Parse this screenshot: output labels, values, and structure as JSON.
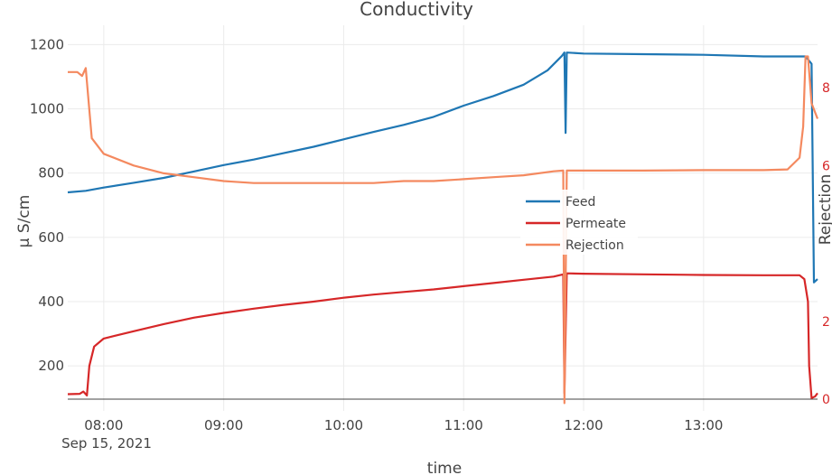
{
  "chart_data": {
    "type": "line",
    "title": "Conductivity",
    "xlabel": "time",
    "ylabel": "μ S/cm",
    "y2label": "Rejection",
    "xlim": [
      7.7,
      13.95
    ],
    "ylim": [
      60,
      1260
    ],
    "y2lim": [
      -0.3,
      9.6
    ],
    "x_ticks": [
      8,
      9,
      10,
      11,
      12,
      13
    ],
    "x_tick_labels": [
      "08:00",
      "09:00",
      "10:00",
      "11:00",
      "12:00",
      "13:00"
    ],
    "x_date_label": "Sep 15, 2021",
    "y_ticks": [
      200,
      400,
      600,
      800,
      1000,
      1200
    ],
    "y2_ticks": [
      0,
      2,
      4,
      6,
      8
    ],
    "y2_tick_labels": [
      "0",
      "2",
      "",
      "6",
      "8"
    ],
    "legend": {
      "position": "center-right",
      "entries": [
        "Feed",
        "Permeate",
        "Rejection"
      ]
    },
    "grid": true,
    "series": [
      {
        "name": "Feed",
        "axis": "y",
        "color": "#1f77b4",
        "points": [
          [
            7.7,
            740
          ],
          [
            7.85,
            745
          ],
          [
            8.0,
            755
          ],
          [
            8.25,
            770
          ],
          [
            8.5,
            785
          ],
          [
            8.75,
            805
          ],
          [
            9.0,
            825
          ],
          [
            9.25,
            842
          ],
          [
            9.5,
            862
          ],
          [
            9.75,
            882
          ],
          [
            10.0,
            905
          ],
          [
            10.25,
            928
          ],
          [
            10.5,
            950
          ],
          [
            10.75,
            975
          ],
          [
            11.0,
            1010
          ],
          [
            11.25,
            1040
          ],
          [
            11.5,
            1075
          ],
          [
            11.7,
            1120
          ],
          [
            11.82,
            1165
          ],
          [
            11.84,
            1175
          ],
          [
            11.85,
            925
          ],
          [
            11.86,
            1175
          ],
          [
            12.0,
            1172
          ],
          [
            12.5,
            1170
          ],
          [
            13.0,
            1168
          ],
          [
            13.5,
            1163
          ],
          [
            13.85,
            1163
          ],
          [
            13.9,
            1140
          ],
          [
            13.91,
            800
          ],
          [
            13.92,
            460
          ],
          [
            13.95,
            470
          ]
        ]
      },
      {
        "name": "Permeate",
        "axis": "y",
        "color": "#d62728",
        "points": [
          [
            7.7,
            112
          ],
          [
            7.8,
            113
          ],
          [
            7.83,
            120
          ],
          [
            7.86,
            108
          ],
          [
            7.88,
            200
          ],
          [
            7.92,
            260
          ],
          [
            8.0,
            285
          ],
          [
            8.25,
            308
          ],
          [
            8.5,
            330
          ],
          [
            8.75,
            350
          ],
          [
            9.0,
            365
          ],
          [
            9.25,
            378
          ],
          [
            9.5,
            390
          ],
          [
            9.75,
            400
          ],
          [
            10.0,
            412
          ],
          [
            10.25,
            422
          ],
          [
            10.5,
            430
          ],
          [
            10.75,
            438
          ],
          [
            11.0,
            448
          ],
          [
            11.25,
            458
          ],
          [
            11.5,
            468
          ],
          [
            11.75,
            478
          ],
          [
            11.83,
            485
          ],
          [
            11.84,
            115
          ],
          [
            11.86,
            488
          ],
          [
            12.0,
            487
          ],
          [
            12.5,
            485
          ],
          [
            13.0,
            483
          ],
          [
            13.5,
            482
          ],
          [
            13.8,
            482
          ],
          [
            13.84,
            470
          ],
          [
            13.87,
            400
          ],
          [
            13.88,
            200
          ],
          [
            13.9,
            100
          ],
          [
            13.93,
            105
          ],
          [
            13.95,
            115
          ]
        ]
      },
      {
        "name": "Rejection",
        "axis": "y2",
        "color": "#f4895f",
        "points": [
          [
            7.7,
            8.4
          ],
          [
            7.78,
            8.4
          ],
          [
            7.82,
            8.3
          ],
          [
            7.85,
            8.5
          ],
          [
            7.9,
            6.7
          ],
          [
            8.0,
            6.3
          ],
          [
            8.25,
            6.0
          ],
          [
            8.5,
            5.8
          ],
          [
            8.75,
            5.7
          ],
          [
            9.0,
            5.6
          ],
          [
            9.25,
            5.55
          ],
          [
            9.5,
            5.55
          ],
          [
            9.75,
            5.55
          ],
          [
            10.0,
            5.55
          ],
          [
            10.25,
            5.55
          ],
          [
            10.5,
            5.6
          ],
          [
            10.75,
            5.6
          ],
          [
            11.0,
            5.65
          ],
          [
            11.25,
            5.7
          ],
          [
            11.5,
            5.75
          ],
          [
            11.75,
            5.85
          ],
          [
            11.83,
            5.87
          ],
          [
            11.84,
            -0.1
          ],
          [
            11.86,
            5.87
          ],
          [
            12.0,
            5.87
          ],
          [
            12.5,
            5.87
          ],
          [
            13.0,
            5.88
          ],
          [
            13.5,
            5.88
          ],
          [
            13.7,
            5.9
          ],
          [
            13.8,
            6.2
          ],
          [
            13.83,
            7.0
          ],
          [
            13.85,
            8.8
          ],
          [
            13.87,
            8.8
          ],
          [
            13.9,
            7.6
          ],
          [
            13.95,
            7.2
          ]
        ]
      }
    ]
  }
}
